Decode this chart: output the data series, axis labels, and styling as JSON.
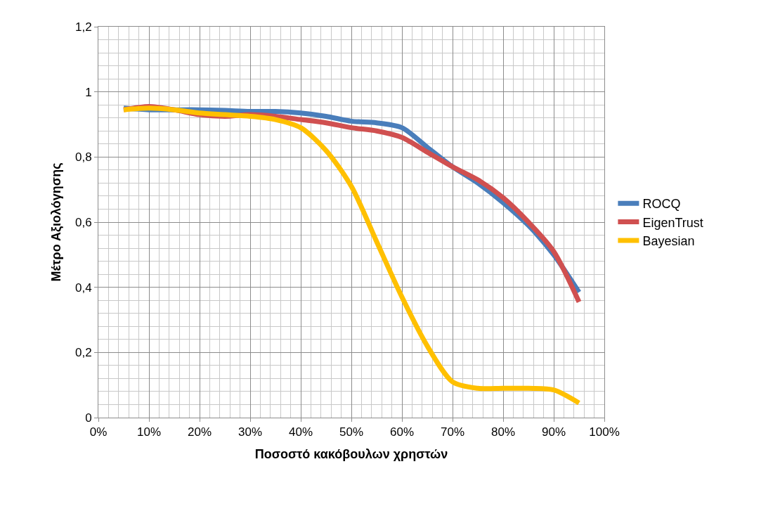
{
  "chart_data": {
    "type": "line",
    "xlabel": "Ποσοστό κακόβουλων χρηστών",
    "ylabel": "Μέτρο Αξιολόγησης",
    "x": [
      5,
      10,
      15,
      20,
      25,
      30,
      35,
      40,
      45,
      50,
      55,
      60,
      65,
      70,
      75,
      80,
      85,
      90,
      95
    ],
    "series": [
      {
        "name": "ROCQ",
        "color": "#4a7ebb",
        "values": [
          0.95,
          0.945,
          0.945,
          0.945,
          0.943,
          0.94,
          0.94,
          0.935,
          0.925,
          0.91,
          0.905,
          0.89,
          0.83,
          0.77,
          0.72,
          0.66,
          0.59,
          0.5,
          0.385
        ]
      },
      {
        "name": "EigenTrust",
        "color": "#d05050",
        "values": [
          0.945,
          0.955,
          0.945,
          0.93,
          0.925,
          0.93,
          0.925,
          0.915,
          0.905,
          0.89,
          0.88,
          0.86,
          0.815,
          0.77,
          0.73,
          0.675,
          0.6,
          0.51,
          0.355
        ]
      },
      {
        "name": "Bayesian",
        "color": "#ffc000",
        "values": [
          0.945,
          0.95,
          0.945,
          0.935,
          0.93,
          0.925,
          0.915,
          0.89,
          0.82,
          0.71,
          0.54,
          0.37,
          0.22,
          0.11,
          0.09,
          0.09,
          0.09,
          0.085,
          0.045
        ]
      }
    ],
    "xlim": [
      0,
      100
    ],
    "xticks": [
      {
        "value": 0,
        "label": "0%"
      },
      {
        "value": 10,
        "label": "10%"
      },
      {
        "value": 20,
        "label": "20%"
      },
      {
        "value": 30,
        "label": "30%"
      },
      {
        "value": 40,
        "label": "40%"
      },
      {
        "value": 50,
        "label": "50%"
      },
      {
        "value": 60,
        "label": "60%"
      },
      {
        "value": 70,
        "label": "70%"
      },
      {
        "value": 80,
        "label": "80%"
      },
      {
        "value": 90,
        "label": "90%"
      },
      {
        "value": 100,
        "label": "100%"
      }
    ],
    "ylim": [
      0,
      1.2
    ],
    "yticks": [
      0,
      {
        "value": 0.2,
        "label": "0,2"
      },
      {
        "value": 0.4,
        "label": "0,4"
      },
      {
        "value": 0.6,
        "label": "0,6"
      },
      {
        "value": 0.8,
        "label": "0,8"
      },
      1,
      {
        "value": 1.2,
        "label": "1,2"
      }
    ],
    "grid": true,
    "legend": "right",
    "marker": "none",
    "line_style": "solid"
  }
}
